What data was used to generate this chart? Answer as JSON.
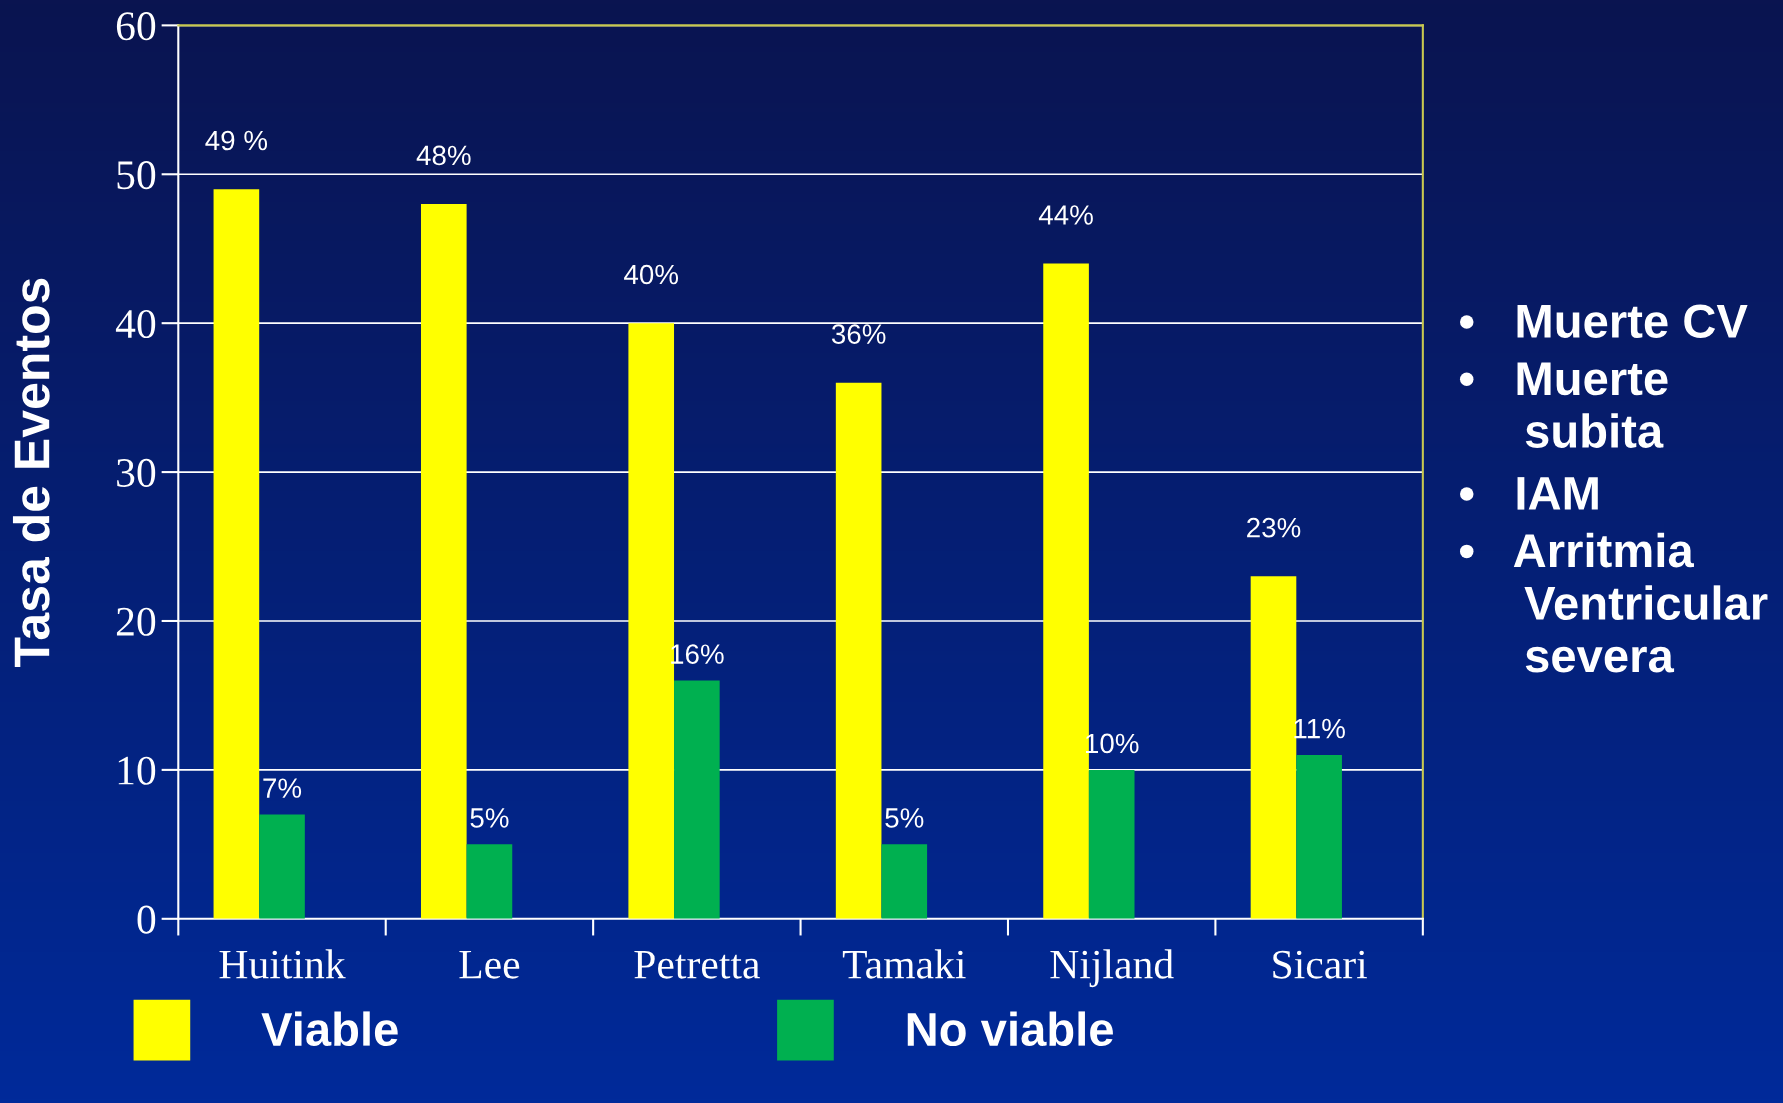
{
  "chart_data": {
    "type": "bar",
    "ylabel": "Tasa de Eventos",
    "categories": [
      "Huitink",
      "Lee",
      "Petretta",
      "Tamaki",
      "Nijland",
      "Sicari"
    ],
    "series": [
      {
        "name": "Viable",
        "color": "#ffff00",
        "values": [
          49,
          48,
          40,
          36,
          44,
          23
        ],
        "value_labels": [
          "49 %",
          "48%",
          "40%",
          "36%",
          "44%",
          "23%"
        ]
      },
      {
        "name": "No viable",
        "color": "#00b050",
        "values": [
          7,
          5,
          16,
          5,
          10,
          11
        ],
        "value_labels": [
          "7%",
          "5%",
          "16%",
          "5%",
          "10%",
          "11%"
        ]
      }
    ],
    "ylim": [
      0,
      60
    ],
    "yticks": [
      0,
      10,
      20,
      30,
      40,
      50,
      60
    ],
    "grid": "y",
    "legend": "bottom",
    "annotations": [
      "•   Muerte CV",
      "•   Muerte\n     subita",
      "•   IAM",
      "•   Arritmia\n     Ventricular\n     severa"
    ]
  }
}
